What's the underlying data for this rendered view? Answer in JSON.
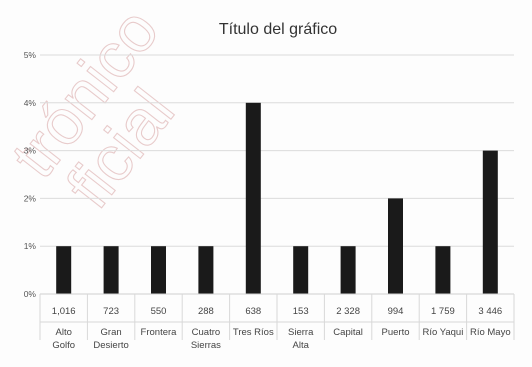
{
  "chart_data": {
    "type": "bar",
    "title": "Título del gráfico",
    "categories": [
      {
        "value_label": "1,016",
        "name_lines": [
          "Alto",
          "Golfo"
        ]
      },
      {
        "value_label": "723",
        "name_lines": [
          "Gran",
          "Desierto"
        ]
      },
      {
        "value_label": "550",
        "name_lines": [
          "Frontera"
        ]
      },
      {
        "value_label": "288",
        "name_lines": [
          "Cuatro",
          "Sierras"
        ]
      },
      {
        "value_label": "638",
        "name_lines": [
          "Tres Ríos"
        ]
      },
      {
        "value_label": "153",
        "name_lines": [
          "Sierra",
          "Alta"
        ]
      },
      {
        "value_label": "2 328",
        "name_lines": [
          "Capital"
        ]
      },
      {
        "value_label": "994",
        "name_lines": [
          "Puerto"
        ]
      },
      {
        "value_label": "1 759",
        "name_lines": [
          "Río Yaqui"
        ]
      },
      {
        "value_label": "3 446",
        "name_lines": [
          "Río Mayo"
        ]
      }
    ],
    "values": [
      1,
      1,
      1,
      1,
      4,
      1,
      1,
      2,
      1,
      3
    ],
    "ylim": [
      0,
      5
    ],
    "yticks": [
      "0%",
      "1%",
      "2%",
      "3%",
      "4%",
      "5%"
    ],
    "grid": true,
    "bar_color": "#1a1a1a",
    "grid_color": "#dcdcdc"
  },
  "watermark": "trónico\nficial"
}
